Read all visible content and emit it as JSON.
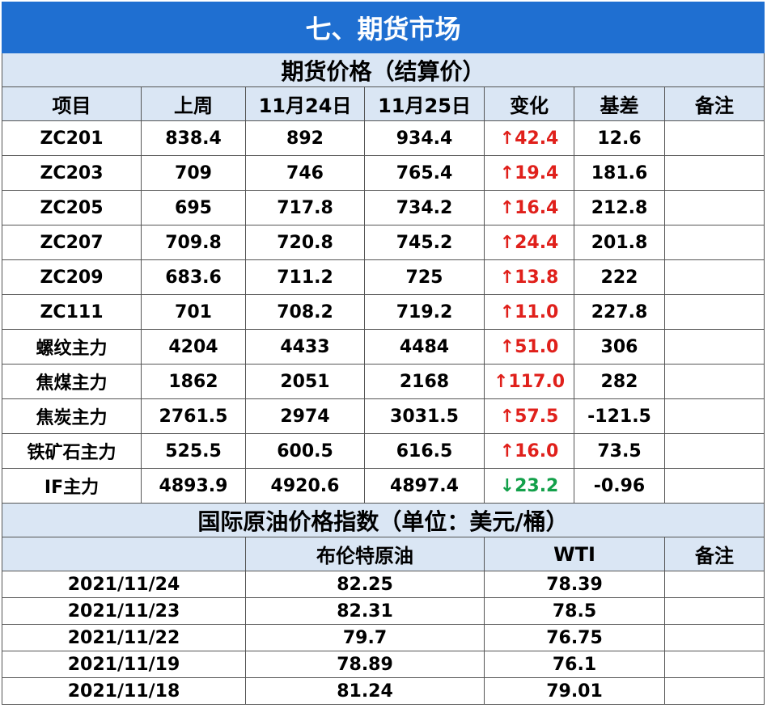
{
  "title": "七、期货市场",
  "futures": {
    "section_title": "期货价格（结算价）",
    "headers": [
      "项目",
      "上周",
      "11月24日",
      "11月25日",
      "变化",
      "基差",
      "备注"
    ],
    "rows": [
      {
        "name": "ZC201",
        "last_week": "838.4",
        "nov24": "892",
        "nov25": "934.4",
        "change": "↑42.4",
        "dir": "up",
        "basis": "12.6",
        "note": ""
      },
      {
        "name": "ZC203",
        "last_week": "709",
        "nov24": "746",
        "nov25": "765.4",
        "change": "↑19.4",
        "dir": "up",
        "basis": "181.6",
        "note": ""
      },
      {
        "name": "ZC205",
        "last_week": "695",
        "nov24": "717.8",
        "nov25": "734.2",
        "change": "↑16.4",
        "dir": "up",
        "basis": "212.8",
        "note": ""
      },
      {
        "name": "ZC207",
        "last_week": "709.8",
        "nov24": "720.8",
        "nov25": "745.2",
        "change": "↑24.4",
        "dir": "up",
        "basis": "201.8",
        "note": ""
      },
      {
        "name": "ZC209",
        "last_week": "683.6",
        "nov24": "711.2",
        "nov25": "725",
        "change": "↑13.8",
        "dir": "up",
        "basis": "222",
        "note": ""
      },
      {
        "name": "ZC111",
        "last_week": "701",
        "nov24": "708.2",
        "nov25": "719.2",
        "change": "↑11.0",
        "dir": "up",
        "basis": "227.8",
        "note": ""
      },
      {
        "name": "螺纹主力",
        "last_week": "4204",
        "nov24": "4433",
        "nov25": "4484",
        "change": "↑51.0",
        "dir": "up",
        "basis": "306",
        "note": ""
      },
      {
        "name": "焦煤主力",
        "last_week": "1862",
        "nov24": "2051",
        "nov25": "2168",
        "change": "↑117.0",
        "dir": "up",
        "basis": "282",
        "note": ""
      },
      {
        "name": "焦炭主力",
        "last_week": "2761.5",
        "nov24": "2974",
        "nov25": "3031.5",
        "change": "↑57.5",
        "dir": "up",
        "basis": "-121.5",
        "note": ""
      },
      {
        "name": "铁矿石主力",
        "last_week": "525.5",
        "nov24": "600.5",
        "nov25": "616.5",
        "change": "↑16.0",
        "dir": "up",
        "basis": "73.5",
        "note": ""
      },
      {
        "name": "IF主力",
        "last_week": "4893.9",
        "nov24": "4920.6",
        "nov25": "4897.4",
        "change": "↓23.2",
        "dir": "down",
        "basis": "-0.96",
        "note": ""
      }
    ]
  },
  "oil": {
    "section_title": "国际原油价格指数（单位：美元/桶）",
    "headers": [
      "",
      "布伦特原油",
      "WTI",
      "备注"
    ],
    "rows": [
      {
        "date": "2021/11/24",
        "brent": "82.25",
        "wti": "78.39",
        "note": ""
      },
      {
        "date": "2021/11/23",
        "brent": "82.31",
        "wti": "78.5",
        "note": ""
      },
      {
        "date": "2021/11/22",
        "brent": "79.7",
        "wti": "76.75",
        "note": ""
      },
      {
        "date": "2021/11/19",
        "brent": "78.89",
        "wti": "76.1",
        "note": ""
      },
      {
        "date": "2021/11/18",
        "brent": "81.24",
        "wti": "79.01",
        "note": ""
      }
    ]
  },
  "colors": {
    "title_bg": "#1f6fd1",
    "header_bg": "#dae6f4",
    "up": "#e0201b",
    "down": "#13a04a"
  }
}
